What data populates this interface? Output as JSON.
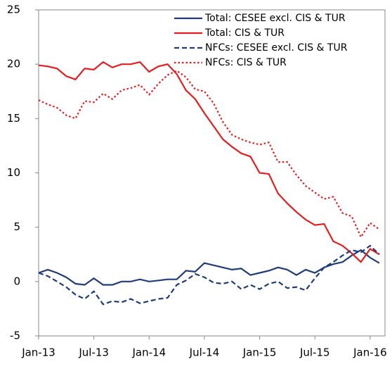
{
  "chart_data": {
    "type": "line",
    "categories": [
      "Jan-13",
      null,
      null,
      null,
      null,
      null,
      "Jul-13",
      null,
      null,
      null,
      null,
      null,
      "Jan-14",
      null,
      null,
      null,
      null,
      null,
      "Jul-14",
      null,
      null,
      null,
      null,
      null,
      "Jan-15",
      null,
      null,
      null,
      null,
      null,
      "Jul-15",
      null,
      null,
      null,
      null,
      null,
      "Jan-16",
      null
    ],
    "series": [
      {
        "name": "Total: CESEE excl. CIS & TUR",
        "color": "#1f3d7a",
        "dash": "solid",
        "values": [
          0.8,
          1.1,
          0.8,
          0.4,
          -0.2,
          -0.3,
          0.3,
          -0.3,
          -0.3,
          0.0,
          0.0,
          0.2,
          0.0,
          0.1,
          0.2,
          0.2,
          1.0,
          0.9,
          1.7,
          1.5,
          1.3,
          1.1,
          1.2,
          0.6,
          0.8,
          1.0,
          1.3,
          1.1,
          0.6,
          1.1,
          0.8,
          1.3,
          1.6,
          1.8,
          2.4,
          2.9,
          2.2,
          1.7
        ]
      },
      {
        "name": "Total: CIS & TUR",
        "color": "#e41e1e",
        "dash": "solid",
        "values": [
          19.9,
          19.8,
          19.6,
          18.9,
          18.6,
          19.6,
          19.5,
          20.2,
          19.7,
          20.0,
          20.0,
          20.2,
          19.3,
          19.8,
          20.0,
          19.1,
          17.6,
          16.8,
          15.5,
          14.3,
          13.1,
          12.4,
          11.8,
          11.5,
          10.0,
          9.9,
          8.1,
          7.2,
          6.4,
          5.7,
          5.2,
          5.3,
          3.7,
          3.3,
          2.6,
          1.8,
          3.0,
          2.5
        ]
      },
      {
        "name": "NFCs: CESEE excl. CIS & TUR",
        "color": "#1f3d7a",
        "dash": "dashed",
        "values": [
          0.8,
          0.5,
          0.0,
          -0.5,
          -1.2,
          -1.6,
          -0.9,
          -2.1,
          -1.8,
          -1.9,
          -1.6,
          -2.0,
          -1.8,
          -1.6,
          -1.5,
          -0.3,
          0.1,
          0.7,
          0.4,
          -0.1,
          -0.2,
          0.0,
          -0.7,
          -0.3,
          -0.7,
          -0.2,
          0.0,
          -0.6,
          -0.5,
          -0.8,
          0.3,
          1.3,
          1.8,
          2.4,
          2.9,
          2.7,
          3.3,
          2.5
        ]
      },
      {
        "name": "NFCs: CIS & TUR",
        "color": "#e41e1e",
        "dash": "dotted",
        "values": [
          16.7,
          16.3,
          16.0,
          15.3,
          15.0,
          16.6,
          16.5,
          17.3,
          16.8,
          17.6,
          17.8,
          18.1,
          17.2,
          18.2,
          19.0,
          19.4,
          18.8,
          17.7,
          17.5,
          16.4,
          14.7,
          13.5,
          13.1,
          12.8,
          12.6,
          12.8,
          11.0,
          11.0,
          9.8,
          8.8,
          8.2,
          7.6,
          7.8,
          6.3,
          6.0,
          4.1,
          5.4,
          4.8
        ]
      }
    ],
    "ylim": [
      -5,
      25
    ],
    "yticks": [
      -5,
      0,
      5,
      10,
      15,
      20,
      25
    ],
    "legend": "upper right"
  }
}
